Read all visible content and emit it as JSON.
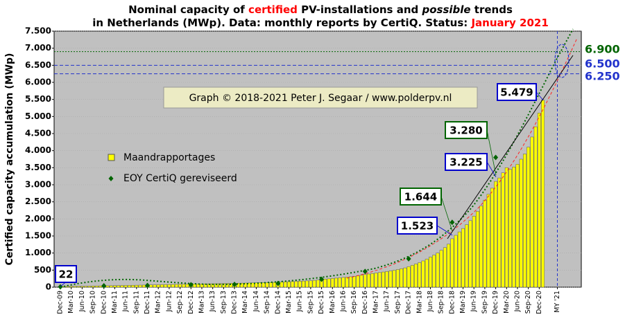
{
  "chart_data": {
    "type": "bar",
    "title": [
      "Nominal capacity of ",
      "certified",
      " PV-installations and ",
      "possible",
      " trends"
    ],
    "subtitle": [
      "in Netherlands (MWp). Data: monthly reports by CertiQ. Status: ",
      "January 2021"
    ],
    "ylabel": "Certified capacity accumulation (MWp)",
    "credit": "Graph © 2018-2021 Peter J. Segaar / www.polderpv.nl",
    "ylim": [
      0,
      7500
    ],
    "yticks": [
      0,
      500,
      {
        "value": 1000,
        "label": "1.000"
      },
      {
        "value": 1500,
        "label": "1.500"
      },
      {
        "value": 2000,
        "label": "2.000"
      },
      {
        "value": 2500,
        "label": "2.500"
      },
      {
        "value": 3000,
        "label": "3.000"
      },
      {
        "value": 3500,
        "label": "3.500"
      },
      {
        "value": 4000,
        "label": "4.000"
      },
      {
        "value": 4500,
        "label": "4.500"
      },
      {
        "value": 5000,
        "label": "5.000"
      },
      {
        "value": 5500,
        "label": "5.500"
      },
      {
        "value": 6000,
        "label": "6.000"
      },
      {
        "value": 6500,
        "label": "6.500"
      },
      {
        "value": 7000,
        "label": "7.000"
      },
      {
        "value": 7500,
        "label": "7.500"
      }
    ],
    "grid": true,
    "categories": [
      "Dec-09",
      null,
      null,
      "Mar-10",
      null,
      null,
      "Jun-10",
      null,
      null,
      "Sep-10",
      null,
      null,
      "Dec-10",
      null,
      null,
      "Mar-11",
      null,
      null,
      "Jun-11",
      null,
      null,
      "Sep-11",
      null,
      null,
      "Dec-11",
      null,
      null,
      "Mar-12",
      null,
      null,
      "Jun-12",
      null,
      null,
      "Sep-12",
      null,
      null,
      "Dec-12",
      null,
      null,
      "Mar-13",
      null,
      null,
      "Jun-13",
      null,
      null,
      "Sep-13",
      null,
      null,
      "Dec-13",
      null,
      null,
      "Mar-14",
      null,
      null,
      "Jun-14",
      null,
      null,
      "Sep-14",
      null,
      null,
      "Dec-14",
      null,
      null,
      "Mar-15",
      null,
      null,
      "Jun-15",
      null,
      null,
      "Sep-15",
      null,
      null,
      "Dec-15",
      null,
      null,
      "Mar-16",
      null,
      null,
      "Jun-16",
      null,
      null,
      "Sep-16",
      null,
      null,
      "Dec-16",
      null,
      null,
      "Mar-17",
      null,
      null,
      "Jun-17",
      null,
      null,
      "Sep-17",
      null,
      null,
      "Dec-17",
      null,
      null,
      "Mar-18",
      null,
      null,
      "Jun-18",
      null,
      null,
      "Sep-18",
      null,
      null,
      "Dec-18",
      null,
      null,
      "Mar-19",
      null,
      null,
      "Jun-19",
      null,
      null,
      "Sep-19",
      null,
      null,
      "Dec-19",
      null,
      null,
      "Mar-20",
      null,
      null,
      "Jun-20",
      null,
      null,
      "Sep-20",
      null,
      null,
      "Dec-20",
      null,
      null,
      null,
      null,
      "MY '21",
      null,
      null,
      null,
      null,
      null,
      null
    ],
    "series": [
      {
        "name": "Maandrapportages",
        "color": "#ffff00",
        "values": [
          22,
          23,
          24,
          25,
          26,
          27,
          28,
          30,
          32,
          34,
          36,
          38,
          40,
          42,
          44,
          46,
          48,
          50,
          52,
          54,
          56,
          58,
          60,
          62,
          65,
          67,
          69,
          71,
          73,
          75,
          77,
          79,
          81,
          83,
          85,
          87,
          90,
          92,
          94,
          96,
          98,
          100,
          102,
          104,
          106,
          108,
          110,
          112,
          115,
          117,
          119,
          121,
          123,
          125,
          127,
          129,
          131,
          133,
          136,
          140,
          145,
          150,
          155,
          160,
          165,
          170,
          175,
          180,
          185,
          190,
          200,
          210,
          225,
          235,
          245,
          255,
          265,
          275,
          285,
          295,
          305,
          320,
          335,
          350,
          370,
          385,
          400,
          415,
          430,
          445,
          460,
          475,
          495,
          515,
          540,
          565,
          600,
          640,
          680,
          720,
          770,
          820,
          880,
          940,
          1000,
          1080,
          1160,
          1260,
          1420,
          1520,
          1620,
          1720,
          1830,
          1950,
          2080,
          2220,
          2380,
          2550,
          2720,
          2900,
          3100,
          3200,
          3350,
          3500,
          3450,
          3520,
          3600,
          3750,
          3900,
          4100,
          4400,
          4700,
          5100,
          5479,
          null,
          null,
          null,
          null,
          null,
          null,
          null,
          null,
          null,
          null
        ]
      },
      {
        "name": "EOY CertiQ gereviseerd",
        "type": "scatter",
        "color": "#006400",
        "x": [
          "Dec-09",
          "Dec-10",
          "Dec-11",
          "Dec-12",
          "Dec-13",
          "Dec-14",
          "Dec-15",
          "Dec-16",
          "Dec-17",
          "Dec-18",
          "Dec-19"
        ],
        "values": [
          10,
          40,
          50,
          70,
          80,
          110,
          230,
          460,
          830,
          1900,
          3800
        ]
      }
    ],
    "annotations": [
      {
        "label": "22",
        "value": 22,
        "color": "#0000cc"
      },
      {
        "label": "1.523",
        "value": 1523,
        "color": "#0000cc"
      },
      {
        "label": "3.225",
        "value": 3225,
        "color": "#0000cc"
      },
      {
        "label": "5.479",
        "value": 5479,
        "color": "#0000cc"
      },
      {
        "label": "1.644",
        "value": 1644,
        "color": "#006400"
      },
      {
        "label": "3.280",
        "value": 3280,
        "color": "#006400"
      }
    ],
    "reference_lines": [
      {
        "label": "6.900",
        "value": 6900,
        "color": "#006400"
      },
      {
        "label": "6.500",
        "value": 6500,
        "color": "#2233cc"
      },
      {
        "label": "6.250",
        "value": 6250,
        "color": "#2233cc"
      }
    ]
  }
}
